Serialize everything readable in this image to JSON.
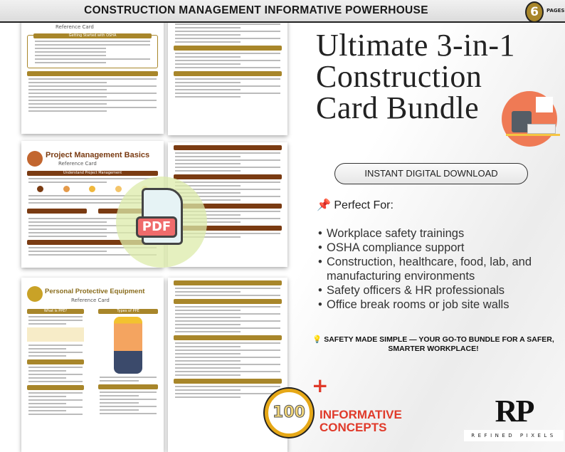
{
  "header": {
    "title": "CONSTRUCTION MANAGEMENT INFORMATIVE POWERHOUSE",
    "page_count": "6",
    "page_count_label": "PAGES"
  },
  "cards": {
    "osha": {
      "subtitle": "Reference Card",
      "section": "Getting Started with OSHA"
    },
    "pm": {
      "title": "Project Management Basics",
      "subtitle": "Reference Card",
      "section": "Understand Project Management"
    },
    "ppe": {
      "title": "Personal Protective Equipment",
      "subtitle": "Reference Card",
      "section1": "What is PPE?",
      "section2": "Types of PPE"
    },
    "pdf_label": "PDF"
  },
  "main": {
    "headline": "Ultimate 3-in-1 Construction Card Bundle",
    "download_label": "INSTANT DIGITAL DOWNLOAD",
    "perfect_for": "📌 Perfect For:",
    "items": [
      "Workplace safety trainings",
      "OSHA compliance support",
      "Construction, healthcare, food, lab, and manufacturing environments",
      "Safety officers & HR professionals",
      "Office break rooms or job site walls"
    ],
    "slogan": "💡 SAFETY MADE SIMPLE — YOUR GO-TO BUNDLE FOR A SAFER, SMARTER WORKPLACE!",
    "concepts_count": "100",
    "concepts_line1": "INFORMATIVE",
    "concepts_line2": "CONCEPTS"
  },
  "brand": {
    "initials": "RP",
    "name": "REFINED PIXELS"
  },
  "colors": {
    "gold": "#a8862a",
    "brown": "#7a3b12",
    "red": "#e03a2a",
    "orange": "#ef7a55"
  }
}
